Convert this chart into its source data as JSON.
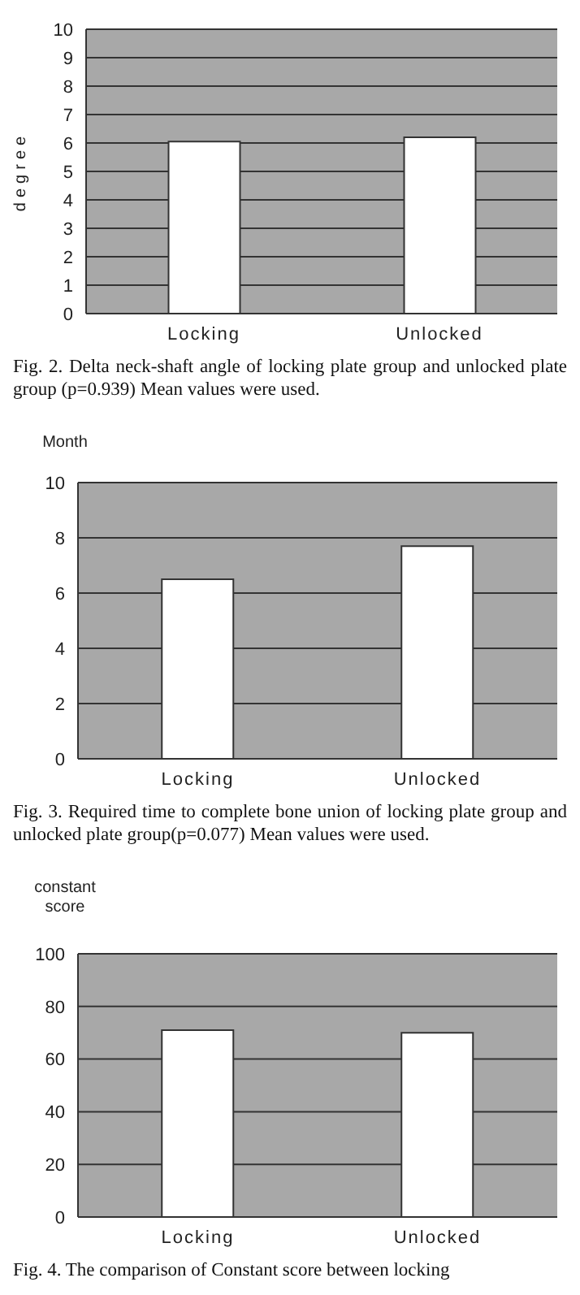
{
  "chart_data": [
    {
      "type": "bar",
      "ylabel": "degree",
      "categories": [
        "Locking",
        "Unlocked"
      ],
      "values": [
        6.05,
        6.2
      ],
      "color": "#ffffff",
      "ylim": [
        0,
        10
      ],
      "yticks": [
        0,
        1,
        2,
        3,
        4,
        5,
        6,
        7,
        8,
        9,
        10
      ],
      "grid": "y",
      "annotations": [
        "Fig. 2. Delta neck-shaft angle of locking plate group and unlocked plate group (p=0.939) Mean values were used."
      ]
    },
    {
      "type": "bar",
      "ylabel": "Month",
      "categories": [
        "Locking",
        "Unlocked"
      ],
      "values": [
        6.5,
        7.7
      ],
      "color": "#ffffff",
      "ylim": [
        0,
        10
      ],
      "yticks": [
        0,
        2,
        4,
        6,
        8,
        10
      ],
      "grid": "y",
      "annotations": [
        "Fig. 3. Required time to complete bone union of locking plate group and unlocked plate group(p=0.077) Mean values were used."
      ]
    },
    {
      "type": "bar",
      "ylabel": "constant score",
      "categories": [
        "Locking",
        "Unlocked"
      ],
      "values": [
        71,
        70
      ],
      "color": "#ffffff",
      "ylim": [
        0,
        100
      ],
      "yticks": [
        0,
        20,
        40,
        60,
        80,
        100
      ],
      "grid": "y",
      "annotations": [
        "Fig. 4. The comparison of Constant score between locking"
      ]
    }
  ]
}
